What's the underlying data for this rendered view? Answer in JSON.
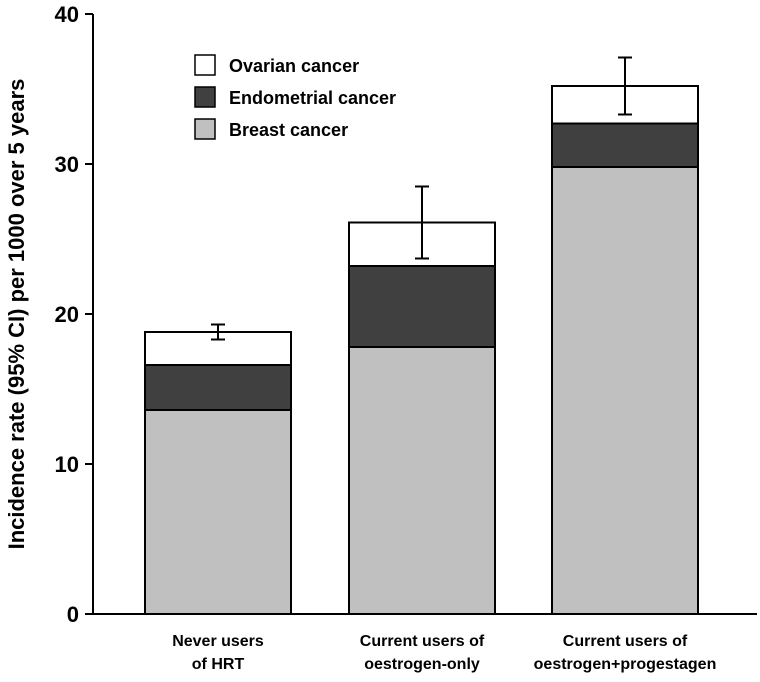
{
  "chart_data": {
    "type": "bar",
    "stacked": true,
    "title": "",
    "xlabel": "",
    "ylabel": "Incidence rate (95% CI) per 1000 over 5 years",
    "ylim": [
      0,
      40
    ],
    "yticks": [
      0,
      10,
      20,
      30,
      40
    ],
    "categories": [
      [
        "Never users",
        "of HRT"
      ],
      [
        "Current users of",
        "oestrogen-only"
      ],
      [
        "Current users of",
        "oestrogen+progestagen"
      ]
    ],
    "series": [
      {
        "name": "Breast cancer",
        "color": "#c0c0c0",
        "values": [
          13.6,
          17.8,
          29.8
        ]
      },
      {
        "name": "Endometrial cancer",
        "color": "#404040",
        "values": [
          3.0,
          5.4,
          2.9
        ]
      },
      {
        "name": "Ovarian cancer",
        "color": "#ffffff",
        "values": [
          2.2,
          2.9,
          2.5
        ]
      }
    ],
    "totals": [
      18.8,
      26.1,
      35.2
    ],
    "error_bars": [
      {
        "low": 18.3,
        "high": 19.3
      },
      {
        "low": 23.7,
        "high": 28.5
      },
      {
        "low": 33.3,
        "high": 37.1
      }
    ],
    "legend": {
      "position": "top-left",
      "entries": [
        "Ovarian cancer",
        "Endometrial cancer",
        "Breast cancer"
      ]
    }
  }
}
